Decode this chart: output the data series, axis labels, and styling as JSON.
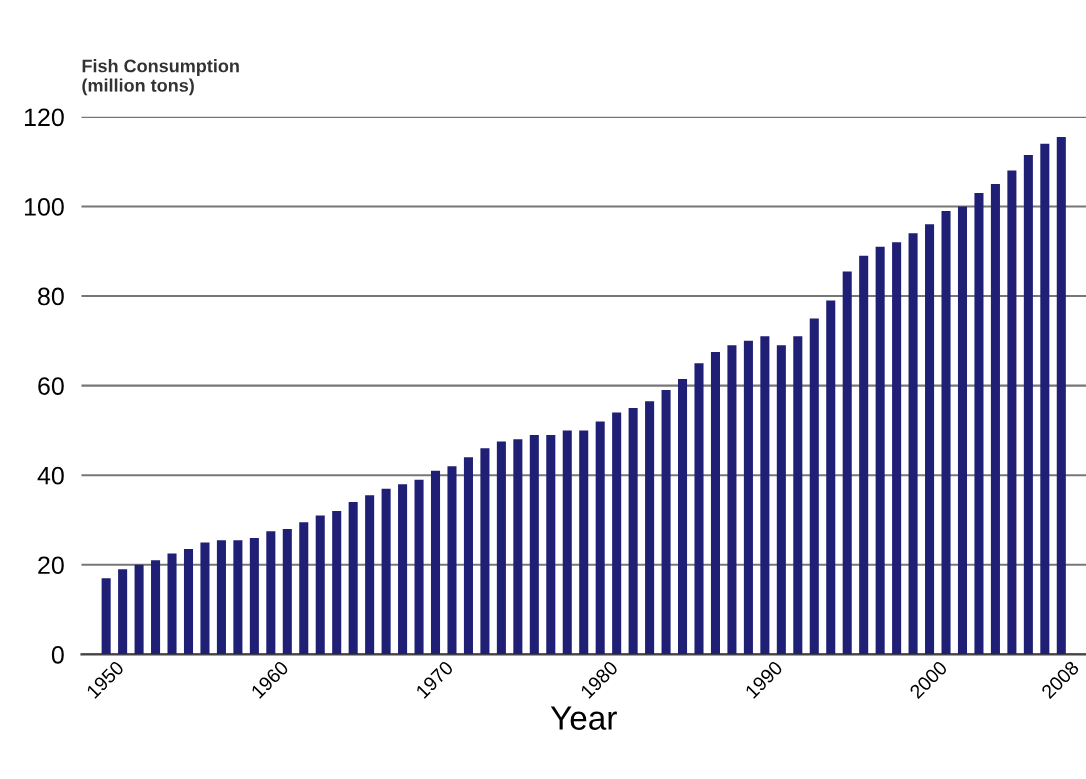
{
  "chart_data": {
    "type": "bar",
    "ylabel": "Fish Consumption\n(million tons)",
    "xlabel": "Year",
    "x": [
      1950,
      1951,
      1952,
      1953,
      1954,
      1955,
      1956,
      1957,
      1958,
      1959,
      1960,
      1961,
      1962,
      1963,
      1964,
      1965,
      1966,
      1967,
      1968,
      1969,
      1970,
      1971,
      1972,
      1973,
      1974,
      1975,
      1976,
      1977,
      1978,
      1979,
      1980,
      1981,
      1982,
      1983,
      1984,
      1985,
      1986,
      1987,
      1988,
      1989,
      1990,
      1991,
      1992,
      1993,
      1994,
      1995,
      1996,
      1997,
      1998,
      1999,
      2000,
      2001,
      2002,
      2003,
      2004,
      2005,
      2006,
      2007,
      2008
    ],
    "values": [
      17,
      19,
      20,
      21,
      22.5,
      23.5,
      25,
      25.5,
      25.5,
      26,
      27.5,
      28,
      29.5,
      31,
      32,
      34,
      35.5,
      37,
      38,
      39,
      41,
      42,
      44,
      46,
      47.5,
      48,
      49,
      49,
      50,
      50,
      52,
      54,
      55,
      56.5,
      59,
      61.5,
      65,
      67.5,
      69,
      70,
      71,
      69,
      71,
      75,
      79,
      85.5,
      89,
      91,
      92,
      94,
      96,
      99,
      100,
      103,
      105,
      108,
      111.5,
      114,
      115.5
    ],
    "color": "#1f1f75",
    "xlim": [
      1948.5,
      2009.5
    ],
    "xticks": [
      1950,
      1960,
      1970,
      1980,
      1990,
      2000,
      2008
    ],
    "ylim": [
      0,
      120
    ],
    "yticks": [
      0,
      20,
      40,
      60,
      80,
      100,
      120
    ],
    "grid": "y"
  }
}
